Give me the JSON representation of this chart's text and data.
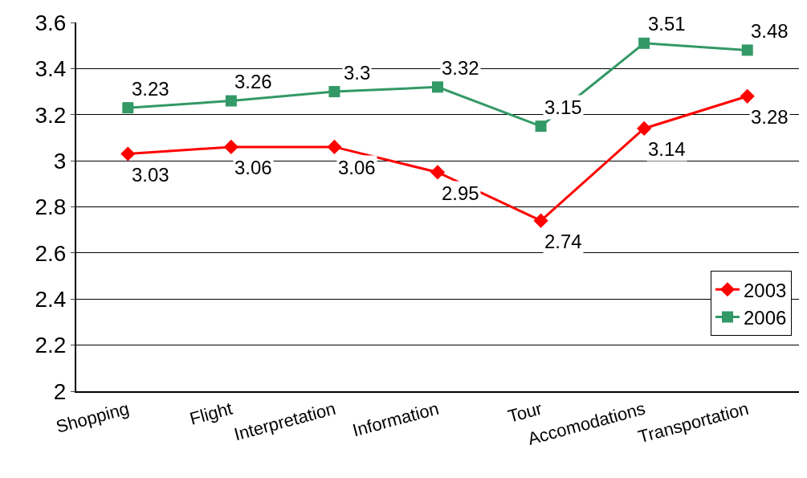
{
  "chart_data": {
    "type": "line",
    "categories": [
      "Shopping",
      "Flight",
      "Interpretation",
      "Information",
      "Tour",
      "Accomodations",
      "Transportation"
    ],
    "series": [
      {
        "name": "2003",
        "color": "#ff0000",
        "marker": "diamond",
        "values": [
          3.03,
          3.06,
          3.06,
          2.95,
          2.74,
          3.14,
          3.28
        ]
      },
      {
        "name": "2006",
        "color": "#339966",
        "marker": "square",
        "values": [
          3.23,
          3.26,
          3.3,
          3.32,
          3.15,
          3.51,
          3.48
        ]
      }
    ],
    "ylim": [
      2,
      3.6
    ],
    "yticks": [
      2,
      2.2,
      2.4,
      2.6,
      2.8,
      3,
      3.2,
      3.4,
      3.6
    ],
    "grid": "y",
    "legend": "bottom right",
    "data_labels": true,
    "line_style": "solid"
  }
}
